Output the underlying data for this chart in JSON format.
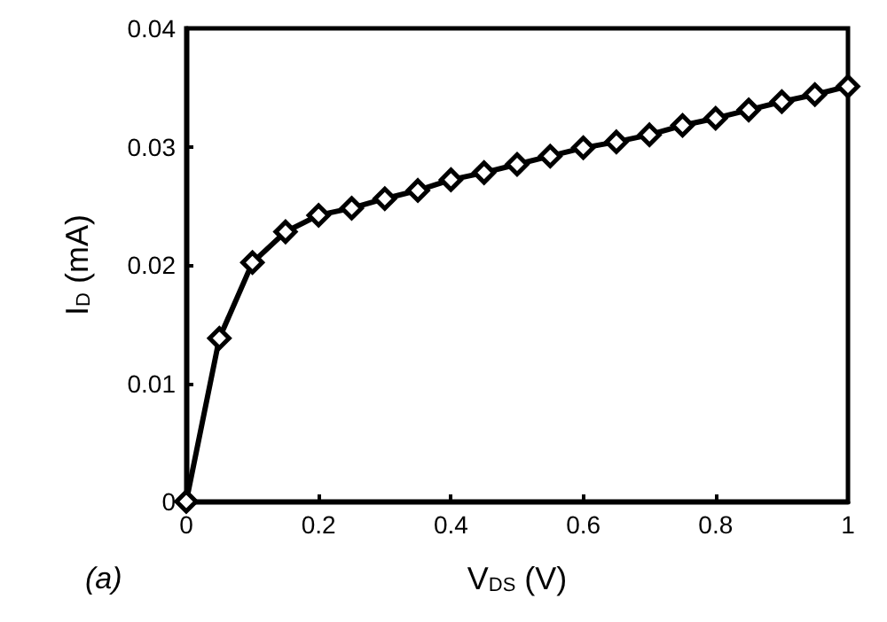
{
  "chart_data": {
    "type": "line",
    "xlabel": "V$_{DS}$ (V)",
    "ylabel": "I$_{D}$ (mA)",
    "annotations": [
      "(a)"
    ],
    "x": [
      0,
      0.05,
      0.1,
      0.15,
      0.2,
      0.25,
      0.3,
      0.35,
      0.4,
      0.45,
      0.5,
      0.55,
      0.6,
      0.65,
      0.7,
      0.75,
      0.8,
      0.85,
      0.9,
      0.95,
      1
    ],
    "series": [
      {
        "color": "#000000",
        "values": [
          0,
          0.0138,
          0.0202,
          0.0228,
          0.0242,
          0.0248,
          0.0256,
          0.0263,
          0.0272,
          0.0278,
          0.0285,
          0.0292,
          0.0299,
          0.0304,
          0.031,
          0.0318,
          0.0324,
          0.0331,
          0.0338,
          0.0344,
          0.0351
        ]
      }
    ],
    "xlim": [
      0,
      1
    ],
    "xticks": [
      0,
      0.2,
      0.4,
      0.6,
      0.8,
      1
    ],
    "ylim": [
      0,
      0.04
    ],
    "yticks": [
      0,
      0.01,
      0.02,
      0.03,
      0.04
    ],
    "grid": false,
    "marker": "diamond",
    "line_style": "solid"
  }
}
